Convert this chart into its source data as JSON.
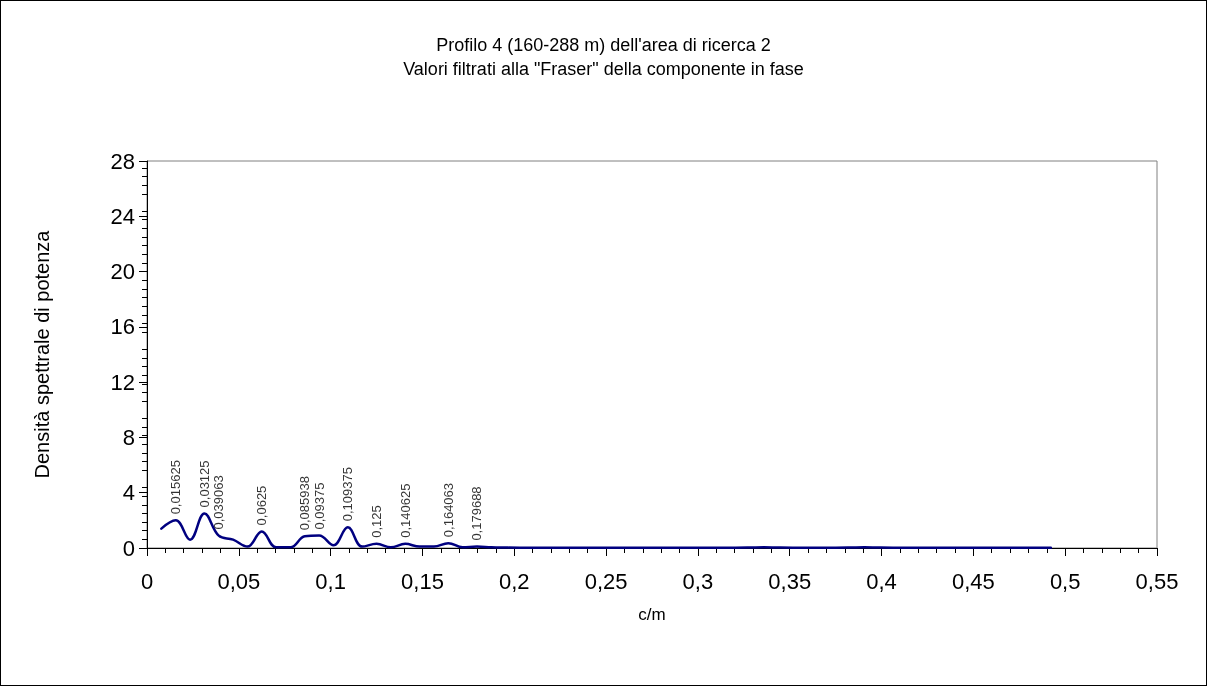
{
  "chart_data": {
    "type": "line",
    "title": "Profilo 4 (160-288 m) dell'area di ricerca 2",
    "subtitle": "Valori filtrati alla \"Fraser\" della componente in fase",
    "xlabel": "c/m",
    "ylabel": "Densità spettrale di potenza",
    "x": [
      0.0078125,
      0.015625,
      0.0234375,
      0.03125,
      0.0390625,
      0.046875,
      0.0546875,
      0.0625,
      0.0703125,
      0.078125,
      0.0859375,
      0.09375,
      0.1015625,
      0.109375,
      0.1171875,
      0.125,
      0.1328125,
      0.140625,
      0.1484375,
      0.15625,
      0.1640625,
      0.171875,
      0.1796875,
      0.1875,
      0.1953125,
      0.203125,
      0.2109375,
      0.21875,
      0.2265625,
      0.234375,
      0.2421875,
      0.25,
      0.2578125,
      0.265625,
      0.2734375,
      0.28125,
      0.2890625,
      0.296875,
      0.3046875,
      0.3125,
      0.3203125,
      0.328125,
      0.3359375,
      0.34375,
      0.3515625,
      0.359375,
      0.3671875,
      0.375,
      0.3828125,
      0.390625,
      0.3984375,
      0.40625,
      0.4140625,
      0.421875,
      0.4296875,
      0.4375,
      0.4453125,
      0.453125,
      0.4609375,
      0.46875,
      0.4765625,
      0.484375,
      0.4921875
    ],
    "series": [
      {
        "color": "#000080",
        "values": [
          1.4,
          2.0,
          0.6,
          2.5,
          0.9,
          0.6,
          0.1,
          1.2,
          0.05,
          0.05,
          0.85,
          0.9,
          0.2,
          1.5,
          0.1,
          0.3,
          0.05,
          0.3,
          0.1,
          0.1,
          0.35,
          0.05,
          0.1,
          0.05,
          0.03,
          0.02,
          0.02,
          0.02,
          0.02,
          0.02,
          0.02,
          0.02,
          0.02,
          0.02,
          0.02,
          0.02,
          0.02,
          0.02,
          0.02,
          0.02,
          0.02,
          0.03,
          0.05,
          0.03,
          0.02,
          0.02,
          0.02,
          0.02,
          0.03,
          0.05,
          0.03,
          0.02,
          0.02,
          0.02,
          0.02,
          0.02,
          0.02,
          0.02,
          0.02,
          0.02,
          0.02,
          0.02,
          0.02
        ]
      }
    ],
    "xlim": [
      0,
      0.55
    ],
    "xticks": [
      0,
      {
        "value": 0.05,
        "label": "0,05"
      },
      {
        "value": 0.1,
        "label": "0,1"
      },
      {
        "value": 0.15,
        "label": "0,15"
      },
      {
        "value": 0.2,
        "label": "0,2"
      },
      {
        "value": 0.25,
        "label": "0,25"
      },
      {
        "value": 0.3,
        "label": "0,3"
      },
      {
        "value": 0.35,
        "label": "0,35"
      },
      {
        "value": 0.4,
        "label": "0,4"
      },
      {
        "value": 0.45,
        "label": "0,45"
      },
      {
        "value": 0.5,
        "label": "0,5"
      },
      {
        "value": 0.55,
        "label": "0,55"
      }
    ],
    "ylim": [
      0,
      28
    ],
    "yticks": [
      0,
      4,
      8,
      12,
      16,
      20,
      24,
      28
    ],
    "grid": false,
    "marker": "none",
    "line_style": "solid",
    "annotations": [
      {
        "text": "0,015625",
        "x": 0.015625,
        "y": 2.0
      },
      {
        "text": "0,03125",
        "x": 0.03125,
        "y": 2.5
      },
      {
        "text": "0,039063",
        "x": 0.0390625,
        "y": 0.9
      },
      {
        "text": "0,0625",
        "x": 0.0625,
        "y": 1.2
      },
      {
        "text": "0,085938",
        "x": 0.0859375,
        "y": 0.85
      },
      {
        "text": "0,09375",
        "x": 0.09375,
        "y": 0.9
      },
      {
        "text": "0,109375",
        "x": 0.109375,
        "y": 1.5
      },
      {
        "text": "0,125",
        "x": 0.125,
        "y": 0.3
      },
      {
        "text": "0,140625",
        "x": 0.140625,
        "y": 0.3
      },
      {
        "text": "0,164063",
        "x": 0.1640625,
        "y": 0.35
      },
      {
        "text": "0,179688",
        "x": 0.1796875,
        "y": 0.1
      }
    ]
  }
}
